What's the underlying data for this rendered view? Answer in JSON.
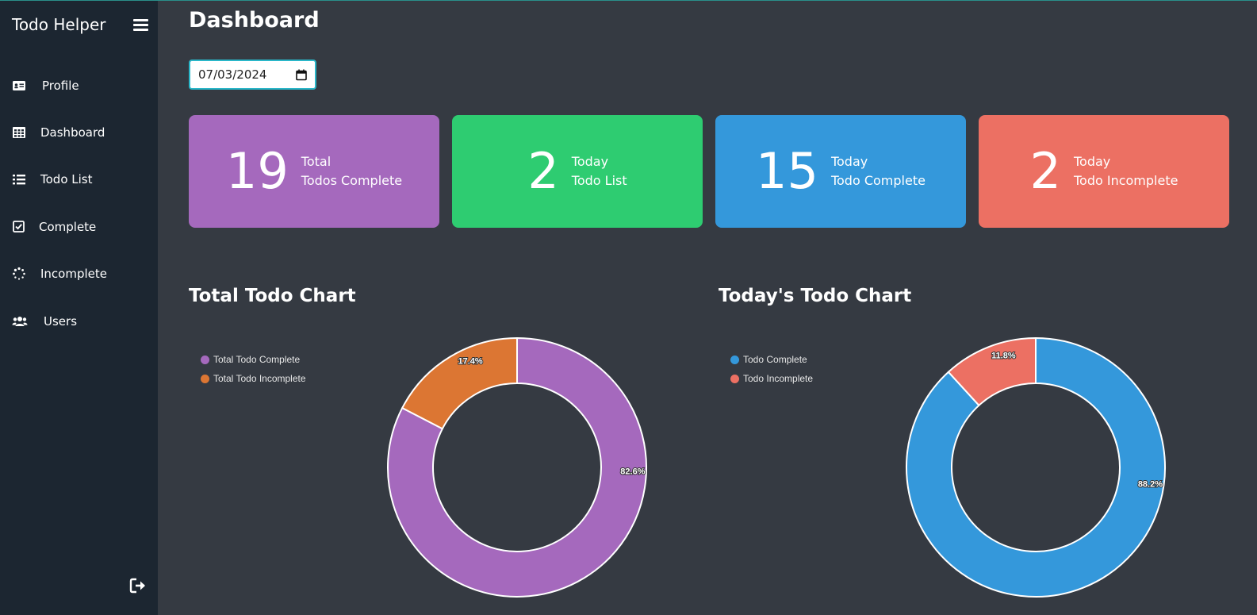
{
  "app": {
    "brand": "Todo Helper"
  },
  "sidebar": {
    "items": [
      {
        "id": "profile",
        "label": "Profile",
        "icon": "id-card-icon"
      },
      {
        "id": "dashboard",
        "label": "Dashboard",
        "icon": "table-grid-icon"
      },
      {
        "id": "todo-list",
        "label": "Todo List",
        "icon": "list-icon"
      },
      {
        "id": "complete",
        "label": "Complete",
        "icon": "check-square-icon"
      },
      {
        "id": "incomplete",
        "label": "Incomplete",
        "icon": "spinner-icon"
      },
      {
        "id": "users",
        "label": "Users",
        "icon": "users-icon"
      }
    ],
    "logout_icon": "sign-out-icon"
  },
  "main": {
    "title": "Dashboard",
    "date_value": "07/03/2024"
  },
  "stats": [
    {
      "number": "19",
      "line1": "Total",
      "line2": "Todos Complete",
      "color": "#a569bd"
    },
    {
      "number": "2",
      "line1": "Today",
      "line2": "Todo List",
      "color": "#2ecc71"
    },
    {
      "number": "15",
      "line1": "Today",
      "line2": "Todo Complete",
      "color": "#3498db"
    },
    {
      "number": "2",
      "line1": "Today",
      "line2": "Todo Incomplete",
      "color": "#ec7063"
    }
  ],
  "chart_data": [
    {
      "type": "pie",
      "title": "Total Todo Chart",
      "categories": [
        "Total Todo Complete",
        "Total Todo Incomplete"
      ],
      "values": [
        82.6,
        17.4
      ],
      "labels": [
        "82.6%",
        "17.4%"
      ],
      "colors": [
        "#a569bd",
        "#dc7633"
      ],
      "legend": "top-left"
    },
    {
      "type": "pie",
      "title": "Today's Todo Chart",
      "categories": [
        "Todo Complete",
        "Todo Incomplete"
      ],
      "values": [
        88.2,
        11.8
      ],
      "labels": [
        "88.2%",
        "11.8%"
      ],
      "colors": [
        "#3498db",
        "#ec7063"
      ],
      "legend": "top-left"
    }
  ]
}
